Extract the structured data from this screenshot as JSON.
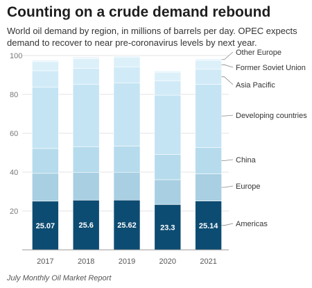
{
  "title": "Counting on a crude demand rebound",
  "subtitle": "World oil demand by region, in millions of barrels per day. OPEC expects demand to recover to near pre-coronavirus levels by next year.",
  "source": "July Monthly Oil Market Report",
  "chart_data": {
    "type": "bar",
    "stacked": true,
    "categories": [
      "2017",
      "2018",
      "2019",
      "2020",
      "2021"
    ],
    "ylim": [
      0,
      100
    ],
    "yticks": [
      20,
      40,
      60,
      80,
      100
    ],
    "grid": true,
    "legend_placement": "right (labels beside final bar)",
    "series": [
      {
        "name": "Americas",
        "color": "#0d4c72",
        "values": [
          25.07,
          25.6,
          25.62,
          23.3,
          25.14
        ],
        "labels": [
          "25.07",
          "25.6",
          "25.62",
          "23.3",
          "25.14"
        ]
      },
      {
        "name": "Europe",
        "color": "#a8cfe2",
        "values": [
          14.3,
          14.3,
          14.3,
          12.8,
          14.0
        ]
      },
      {
        "name": "China",
        "color": "#b6dbec",
        "values": [
          12.8,
          13.2,
          13.5,
          13.0,
          13.5
        ]
      },
      {
        "name": "Developing countries",
        "color": "#c4e4f3",
        "values": [
          31.5,
          32.0,
          32.4,
          30.5,
          32.5
        ]
      },
      {
        "name": "Asia Pacific",
        "color": "#d1eaf7",
        "values": [
          8.5,
          8.3,
          8.2,
          7.3,
          7.8
        ]
      },
      {
        "name": "Former Soviet Union",
        "color": "#dcf0fa",
        "values": [
          4.7,
          5.0,
          5.0,
          4.5,
          4.6
        ]
      },
      {
        "name": "Other Europe",
        "color": "#e8f5fc",
        "values": [
          0.8,
          0.9,
          0.8,
          0.7,
          0.8
        ]
      }
    ]
  }
}
